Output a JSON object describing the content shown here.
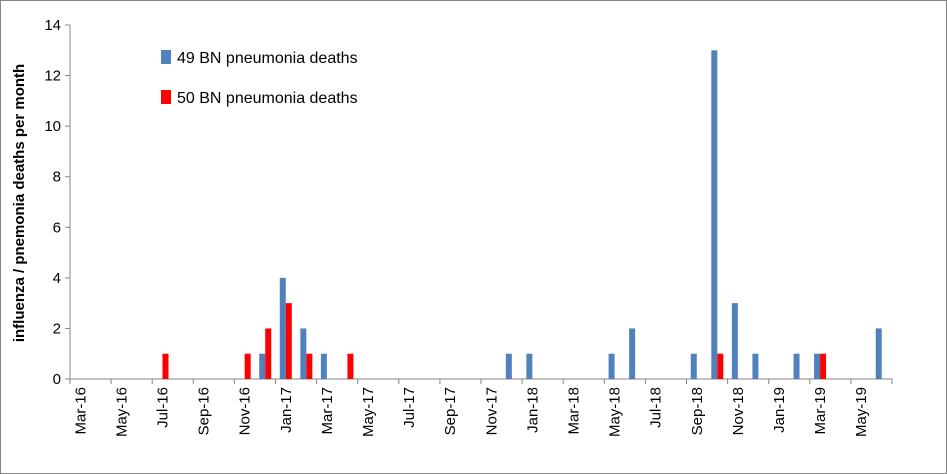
{
  "chart_data": {
    "type": "bar",
    "ylabel": "influenza / pnemonia deaths per month",
    "xlabel": "",
    "ylim": [
      0,
      14
    ],
    "yticks": [
      0,
      2,
      4,
      6,
      8,
      10,
      12,
      14
    ],
    "grid": false,
    "legend_position": "top-left",
    "categories": [
      "Mar-16",
      "Apr-16",
      "May-16",
      "Jun-16",
      "Jul-16",
      "Aug-16",
      "Sep-16",
      "Oct-16",
      "Nov-16",
      "Dec-16",
      "Jan-17",
      "Feb-17",
      "Mar-17",
      "Apr-17",
      "May-17",
      "Jun-17",
      "Jul-17",
      "Aug-17",
      "Sep-17",
      "Oct-17",
      "Nov-17",
      "Dec-17",
      "Jan-18",
      "Feb-18",
      "Mar-18",
      "Apr-18",
      "May-18",
      "Jun-18",
      "Jul-18",
      "Aug-18",
      "Sep-18",
      "Oct-18",
      "Nov-18",
      "Dec-18",
      "Jan-19",
      "Feb-19",
      "Mar-19",
      "Apr-19",
      "May-19",
      "Jun-19"
    ],
    "tick_labels": [
      "Mar-16",
      "May-16",
      "Jul-16",
      "Sep-16",
      "Nov-16",
      "Jan-17",
      "Mar-17",
      "May-17",
      "Jul-17",
      "Sep-17",
      "Nov-17",
      "Jan-18",
      "Mar-18",
      "May-18",
      "Jul-18",
      "Sep-18",
      "Nov-18",
      "Jan-19",
      "Mar-19",
      "May-19"
    ],
    "series": [
      {
        "name": "49 BN pneumonia deaths",
        "color": "#4F81BD",
        "values": [
          0,
          0,
          0,
          0,
          0,
          0,
          0,
          0,
          0,
          1,
          4,
          2,
          1,
          0,
          0,
          0,
          0,
          0,
          0,
          0,
          0,
          1,
          1,
          0,
          0,
          0,
          1,
          2,
          0,
          0,
          1,
          13,
          3,
          1,
          0,
          1,
          1,
          0,
          0,
          2
        ]
      },
      {
        "name": "50 BN pneumonia deaths",
        "color": "#FF0000",
        "values": [
          0,
          0,
          0,
          0,
          1,
          0,
          0,
          0,
          1,
          2,
          3,
          1,
          0,
          1,
          0,
          0,
          0,
          0,
          0,
          0,
          0,
          0,
          0,
          0,
          0,
          0,
          0,
          0,
          0,
          0,
          0,
          1,
          0,
          0,
          0,
          0,
          1,
          0,
          0,
          0
        ]
      }
    ]
  }
}
